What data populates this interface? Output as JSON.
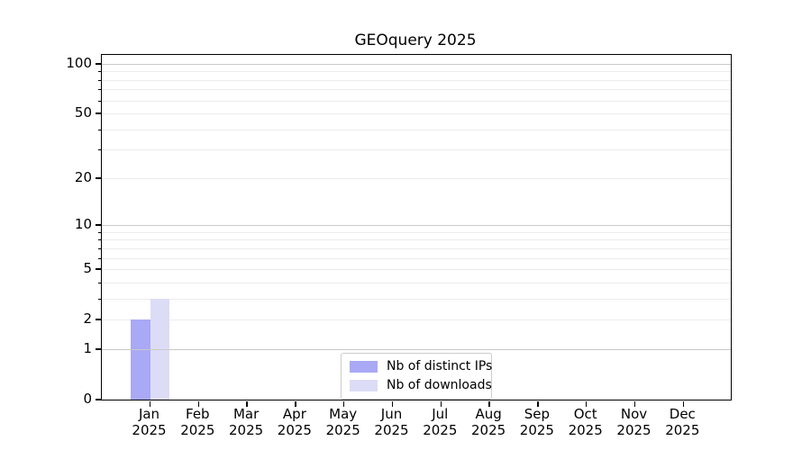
{
  "chart_data": {
    "type": "bar",
    "title": "GEOquery 2025",
    "categories": [
      "Jan",
      "Feb",
      "Mar",
      "Apr",
      "May",
      "Jun",
      "Jul",
      "Aug",
      "Sep",
      "Oct",
      "Nov",
      "Dec"
    ],
    "x_year": "2025",
    "series": [
      {
        "name": "Nb of distinct IPs",
        "color": "#a9a9f5",
        "values": [
          2,
          0,
          0,
          0,
          0,
          0,
          0,
          0,
          0,
          0,
          0,
          0
        ]
      },
      {
        "name": "Nb of downloads",
        "color": "#dcdcf7",
        "values": [
          3,
          0,
          0,
          0,
          0,
          0,
          0,
          0,
          0,
          0,
          0,
          0
        ]
      }
    ],
    "y_scale": "log10(1+v)",
    "ylim": [
      0,
      113
    ],
    "y_tick_labels": [
      "0",
      "1",
      "2",
      "5",
      "10",
      "20",
      "50",
      "100"
    ],
    "y_tick_values": [
      0,
      1,
      2,
      5,
      10,
      20,
      50,
      100
    ],
    "y_minor_gridline_values": [
      2,
      3,
      4,
      5,
      6,
      7,
      8,
      9,
      20,
      30,
      40,
      50,
      60,
      70,
      80,
      90
    ],
    "y_major_gridline_values": [
      1,
      10,
      100
    ],
    "grid": "horizontal",
    "legend_position": "inside-bottom-center",
    "colors": {
      "minor_grid": "#ececec",
      "major_grid": "#c9c9c9",
      "axis": "#000000",
      "legend_border": "#cccccc",
      "background": "#ffffff"
    }
  }
}
